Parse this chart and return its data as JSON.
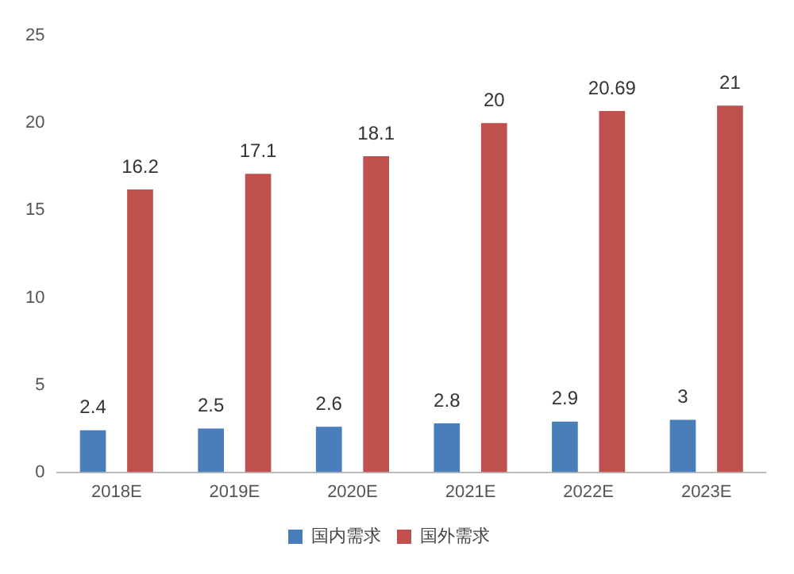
{
  "chart_data": {
    "type": "bar",
    "categories": [
      "2018E",
      "2019E",
      "2020E",
      "2021E",
      "2022E",
      "2023E"
    ],
    "series": [
      {
        "name": "国内需求",
        "color": "#4a7ebb",
        "values": [
          2.4,
          2.5,
          2.6,
          2.8,
          2.9,
          3
        ]
      },
      {
        "name": "国外需求",
        "color": "#c0504d",
        "values": [
          16.2,
          17.1,
          18.1,
          20,
          20.69,
          21
        ]
      }
    ],
    "ylim": [
      0,
      25
    ],
    "yticks": [
      0,
      5,
      10,
      15,
      20,
      25
    ],
    "grid": false,
    "legend": "bottom",
    "data_labels": true
  }
}
